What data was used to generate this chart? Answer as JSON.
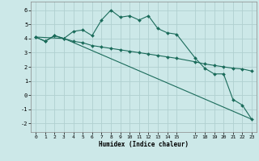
{
  "xlabel": "Humidex (Indice chaleur)",
  "background_color": "#cce8e8",
  "grid_color": "#b0d0d0",
  "line_color": "#1a6b5a",
  "xlim": [
    -0.5,
    23.5
  ],
  "ylim": [
    -2.6,
    6.6
  ],
  "xticks": [
    0,
    1,
    2,
    3,
    4,
    5,
    6,
    7,
    8,
    9,
    10,
    11,
    12,
    13,
    14,
    15,
    17,
    18,
    19,
    20,
    21,
    22,
    23
  ],
  "yticks": [
    -2,
    -1,
    0,
    1,
    2,
    3,
    4,
    5,
    6
  ],
  "line1_x": [
    0,
    1,
    2,
    3,
    4,
    5,
    6,
    7,
    8,
    9,
    10,
    11,
    12,
    13,
    14,
    15,
    17,
    18,
    19,
    20,
    21,
    22,
    23
  ],
  "line1_y": [
    4.1,
    3.8,
    4.2,
    4.0,
    4.5,
    4.6,
    4.2,
    5.3,
    6.0,
    5.5,
    5.6,
    5.3,
    5.6,
    4.7,
    4.4,
    4.3,
    2.6,
    1.9,
    1.5,
    1.5,
    -0.3,
    -0.7,
    -1.7
  ],
  "line2_x": [
    0,
    1,
    2,
    3,
    4,
    5,
    6,
    7,
    8,
    9,
    10,
    11,
    12,
    13,
    14,
    15,
    17,
    18,
    19,
    20,
    21,
    22,
    23
  ],
  "line2_y": [
    4.1,
    3.8,
    4.2,
    4.0,
    3.8,
    3.7,
    3.5,
    3.4,
    3.3,
    3.2,
    3.1,
    3.0,
    2.9,
    2.8,
    2.7,
    2.6,
    2.35,
    2.2,
    2.1,
    2.0,
    1.9,
    1.85,
    1.7
  ],
  "line3_x": [
    0,
    3,
    23
  ],
  "line3_y": [
    4.1,
    4.0,
    -1.7
  ]
}
